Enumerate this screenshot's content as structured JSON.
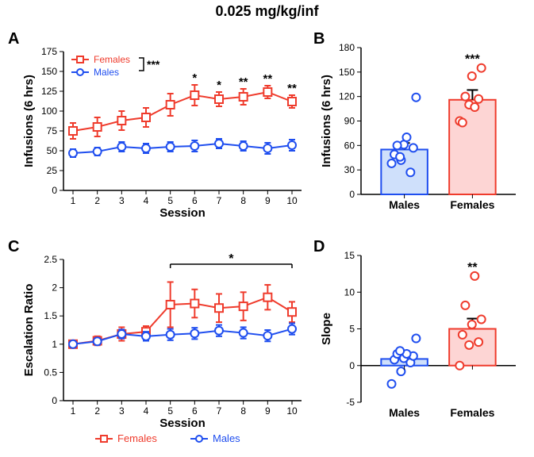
{
  "title": "0.025 mg/kg/inf",
  "colors": {
    "female": "#ef3b2c",
    "female_fill": "#fdd5d4",
    "male": "#1f4eef",
    "male_fill": "#cfe0fb",
    "axis": "#000000",
    "bg": "#ffffff"
  },
  "panelA": {
    "label": "A",
    "ylabel": "Infusions (6 hrs)",
    "xlabel": "Session",
    "ylim": [
      0,
      175
    ],
    "ytick_step": 25,
    "xticks": [
      1,
      2,
      3,
      4,
      5,
      6,
      7,
      8,
      9,
      10
    ],
    "series": {
      "females": {
        "label": "Females",
        "y": [
          75,
          80,
          88,
          92,
          108,
          120,
          115,
          118,
          124,
          112
        ],
        "err": [
          10,
          12,
          12,
          12,
          14,
          13,
          9,
          10,
          8,
          8
        ]
      },
      "males": {
        "label": "Males",
        "y": [
          47,
          49,
          55,
          53,
          55,
          56,
          59,
          56,
          53,
          57
        ],
        "err": [
          5,
          5,
          6,
          6,
          6,
          7,
          6,
          6,
          7,
          7
        ]
      }
    },
    "bracket_sig": "***",
    "point_sig": {
      "6": "*",
      "7": "*",
      "8": "**",
      "9": "**",
      "10": "**"
    }
  },
  "panelB": {
    "label": "B",
    "ylabel": "Infusions (6 hrs)",
    "ylim": [
      0,
      180
    ],
    "ytick_step": 30,
    "bars": {
      "males": {
        "label": "Males",
        "mean": 55,
        "err": 8,
        "points": [
          38,
          42,
          27,
          49,
          61,
          57,
          60,
          70,
          119,
          46
        ]
      },
      "females": {
        "label": "Females",
        "mean": 116,
        "err": 12,
        "points": [
          90,
          110,
          117,
          88,
          145,
          155,
          120,
          107
        ],
        "sig": "***"
      }
    }
  },
  "panelC": {
    "label": "C",
    "ylabel": "Escalation Ratio",
    "xlabel": "Session",
    "ylim": [
      0,
      2.5
    ],
    "ytick_step": 0.5,
    "xticks": [
      1,
      2,
      3,
      4,
      5,
      6,
      7,
      8,
      9,
      10
    ],
    "series": {
      "females": {
        "label": "Females",
        "y": [
          1.0,
          1.06,
          1.18,
          1.22,
          1.7,
          1.72,
          1.64,
          1.67,
          1.83,
          1.57
        ],
        "err": [
          0.0,
          0.08,
          0.12,
          0.1,
          0.4,
          0.25,
          0.25,
          0.25,
          0.22,
          0.18
        ]
      },
      "males": {
        "label": "Males",
        "y": [
          1.0,
          1.05,
          1.18,
          1.14,
          1.17,
          1.19,
          1.24,
          1.2,
          1.15,
          1.27
        ],
        "err": [
          0.0,
          0.06,
          0.08,
          0.08,
          0.1,
          0.1,
          0.1,
          0.1,
          0.1,
          0.1
        ]
      }
    },
    "bar_sig": {
      "from": 5,
      "to": 10,
      "text": "*"
    }
  },
  "panelD": {
    "label": "D",
    "ylabel": "Slope",
    "ylim": [
      -5,
      15
    ],
    "ytick_step": 5,
    "bars": {
      "males": {
        "label": "Males",
        "mean": 0.9,
        "err": 0.8,
        "points": [
          -2.5,
          -0.8,
          0.4,
          0.8,
          1.0,
          1.3,
          1.6,
          1.6,
          3.7,
          2.0
        ]
      },
      "females": {
        "label": "Females",
        "mean": 5.0,
        "err": 1.4,
        "points": [
          0.0,
          2.8,
          3.2,
          4.2,
          5.6,
          6.3,
          8.2,
          12.2
        ],
        "sig": "**"
      }
    }
  },
  "legend": {
    "females": "Females",
    "males": "Males"
  },
  "marker_size": 5,
  "line_width": 2,
  "err_cap": 4
}
